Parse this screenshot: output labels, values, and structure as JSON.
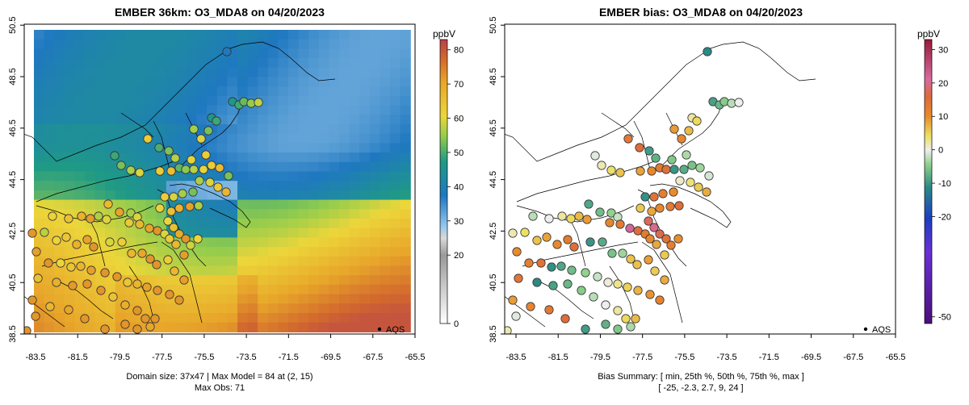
{
  "chart_data": [
    {
      "type": "heatmap",
      "title": "EMBER 36km: O3_MDA8 on 04/20/2023",
      "x_ticks": [
        "-83.5",
        "-81.5",
        "-79.5",
        "-77.5",
        "-75.5",
        "-73.5",
        "-71.5",
        "-69.5",
        "-67.5",
        "-65.5"
      ],
      "y_ticks": [
        "38.5",
        "40.5",
        "42.5",
        "44.5",
        "46.5",
        "48.5",
        "50.5"
      ],
      "xlim": [
        -84.3,
        -64.8
      ],
      "ylim": [
        38.3,
        50.6
      ],
      "colorbar": {
        "unit": "ppbV",
        "ticks": [
          "0",
          "20",
          "30",
          "40",
          "50",
          "60",
          "70",
          "80"
        ],
        "range": [
          0,
          83
        ]
      },
      "legend_label": "AQS",
      "caption_line1": "Domain size: 37x47 | Max Model = 84 at (2, 15)",
      "caption_line2": "Max Obs: 71"
    },
    {
      "type": "scatter",
      "title": "EMBER bias: O3_MDA8 on 04/20/2023",
      "x_ticks": [
        "-83.5",
        "-81.5",
        "-79.5",
        "-77.5",
        "-75.5",
        "-73.5",
        "-71.5",
        "-69.5",
        "-67.5",
        "-65.5"
      ],
      "y_ticks": [
        "38.5",
        "40.5",
        "42.5",
        "44.5",
        "46.5",
        "48.5",
        "50.5"
      ],
      "xlim": [
        -84.3,
        -64.8
      ],
      "ylim": [
        38.3,
        50.6
      ],
      "colorbar": {
        "unit": "ppbV",
        "ticks": [
          "-50",
          "-20",
          "-10",
          "0",
          "10",
          "20",
          "30"
        ],
        "range": [
          -52,
          33
        ]
      },
      "legend_label": "AQS",
      "caption_line1": "Bias Summary: [ min, 25th %, 50th %, 75th %, max ]",
      "caption_line2": "[ -25,   -2.3,   2.7,   9,   24 ]",
      "bias_summary": {
        "min": -25,
        "p25": -2.3,
        "p50": 2.7,
        "p75": 9,
        "max": 24
      }
    }
  ],
  "colors": {
    "frame": "#000000",
    "background": "#ffffff"
  }
}
